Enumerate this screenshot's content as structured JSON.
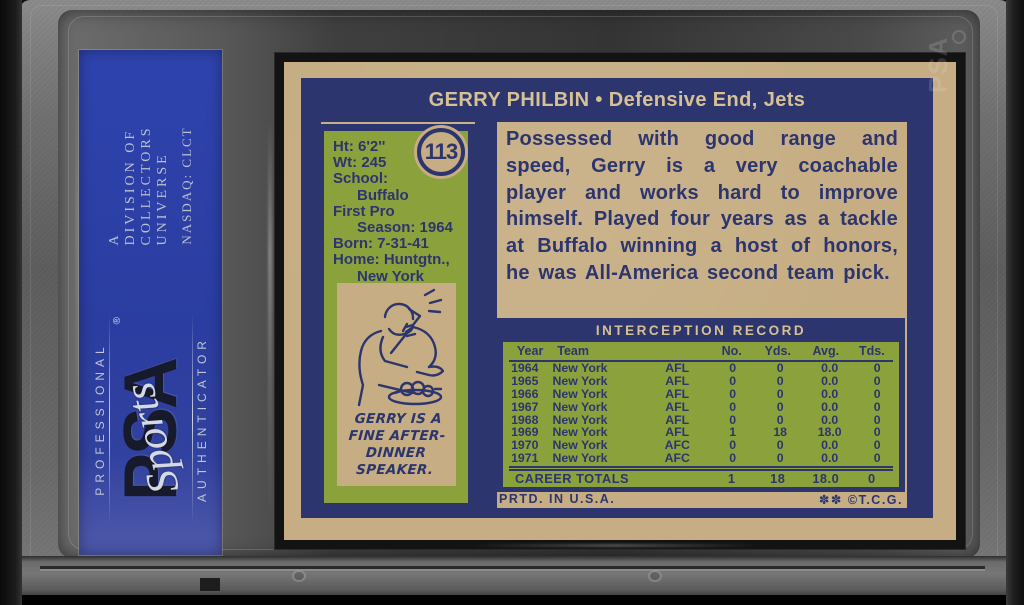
{
  "colors": {
    "navy": "#2c356e",
    "tan": "#c6ad83",
    "green": "#8ba23c",
    "label_blue": "#2b3da0",
    "cream": "#d6c095"
  },
  "slab": {
    "etch": "PSA",
    "label": {
      "professional": "PROFESSIONAL",
      "psa": "PSA",
      "sports_script": "Sports",
      "reg_mark": "®",
      "authenticator": "AUTHENTICATOR",
      "division_lines": [
        "A",
        "DIVISION OF",
        "COLLECTORS",
        "UNIVERSE"
      ],
      "nasdaq": "NASDAQ: CLCT"
    }
  },
  "card": {
    "title": "GERRY PHILBIN • Defensive End, Jets",
    "card_number": "113",
    "vitals": [
      {
        "text": "Ht: 6'2''",
        "indent": false
      },
      {
        "text": "Wt: 245",
        "indent": false
      },
      {
        "text": "School:",
        "indent": false
      },
      {
        "text": "Buffalo",
        "indent": true
      },
      {
        "text": "First Pro",
        "indent": false
      },
      {
        "text": "Season: 1964",
        "indent": true
      },
      {
        "text": "Born: 7-31-41",
        "indent": false
      },
      {
        "text": "Home: Huntgtn.,",
        "indent": false
      },
      {
        "text": "New York",
        "indent": true
      }
    ],
    "cartoon_caption_lines": [
      "GERRY IS A",
      "FINE AFTER-",
      "DINNER SPEAKER."
    ],
    "bio": "Possessed with good range and speed, Gerry is a very coachable player and works hard to improve himself. Played four years as a tackle at Buffalo winning a host of honors, he was All-America second team pick.",
    "table": {
      "title": "INTERCEPTION RECORD",
      "columns": [
        "Year",
        "Team",
        "",
        "No.",
        "Yds.",
        "Avg.",
        "Tds."
      ],
      "rows": [
        [
          "1964",
          "New York",
          "AFL",
          "0",
          "0",
          "0.0",
          "0"
        ],
        [
          "1965",
          "New York",
          "AFL",
          "0",
          "0",
          "0.0",
          "0"
        ],
        [
          "1966",
          "New York",
          "AFL",
          "0",
          "0",
          "0.0",
          "0"
        ],
        [
          "1967",
          "New York",
          "AFL",
          "0",
          "0",
          "0.0",
          "0"
        ],
        [
          "1968",
          "New York",
          "AFL",
          "0",
          "0",
          "0.0",
          "0"
        ],
        [
          "1969",
          "New York",
          "AFL",
          "1",
          "18",
          "18.0",
          "0"
        ],
        [
          "1970",
          "New York",
          "AFC",
          "0",
          "0",
          "0.0",
          "0"
        ],
        [
          "1971",
          "New York",
          "AFC",
          "0",
          "0",
          "0.0",
          "0"
        ]
      ],
      "totals": {
        "label": "CAREER TOTALS",
        "values": [
          "1",
          "18",
          "18.0",
          "0"
        ]
      }
    },
    "footer_left": "PRTD. IN U.S.A.",
    "footer_stars": "✽✽",
    "footer_right": "©T.C.G."
  }
}
